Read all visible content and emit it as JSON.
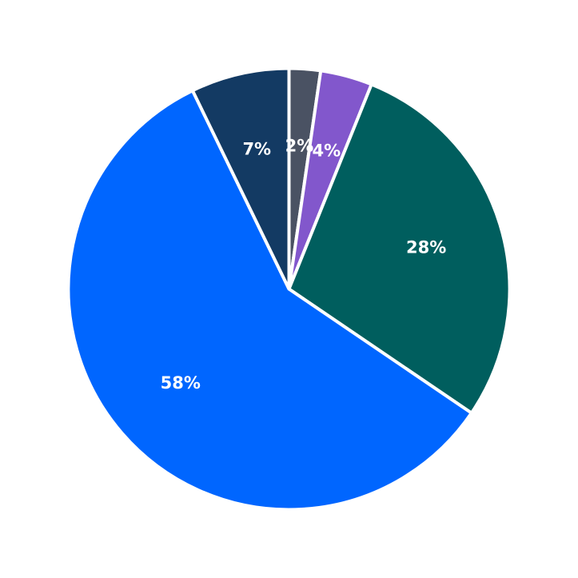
{
  "chart_data": {
    "type": "pie",
    "title": "",
    "start_angle_deg": 90,
    "direction": "clockwise",
    "slices": [
      {
        "label": "2%",
        "value": 2.3,
        "color": "#4a5263"
      },
      {
        "label": "4%",
        "value": 3.8,
        "color": "#8257cc"
      },
      {
        "label": "28%",
        "value": 28.4,
        "color": "#005e5e"
      },
      {
        "label": "58%",
        "value": 58.3,
        "color": "#0066ff"
      },
      {
        "label": "7%",
        "value": 7.2,
        "color": "#133a63"
      }
    ]
  }
}
